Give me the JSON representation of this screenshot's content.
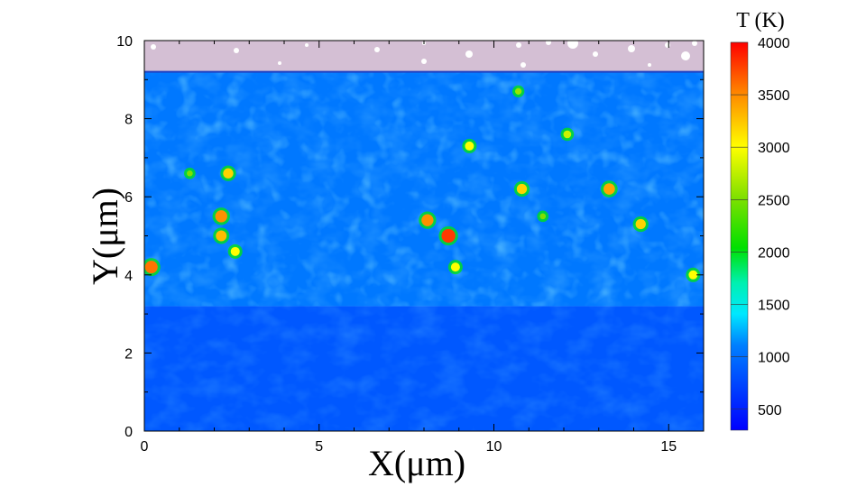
{
  "chart_data": {
    "type": "heatmap",
    "xlabel": "X(μm)",
    "ylabel": "Y(μm)",
    "xlim": [
      0,
      16
    ],
    "ylim": [
      0,
      10
    ],
    "xticks": [
      "0",
      "5",
      "10",
      "15"
    ],
    "yticks": [
      "0",
      "2",
      "4",
      "6",
      "8",
      "10"
    ],
    "grid": false,
    "colorbar": {
      "title": "T (K)",
      "range": [
        300,
        4000
      ],
      "ticks": [
        "500",
        "1000",
        "1500",
        "2000",
        "2500",
        "3000",
        "3500",
        "4000"
      ],
      "colormap": "jet",
      "placement": "right"
    },
    "regions": [
      {
        "y_range": [
          0,
          3.2
        ],
        "temperature": 850
      },
      {
        "y_range": [
          3.2,
          9.2
        ],
        "temperature": 1050
      },
      {
        "y_range": [
          9.2,
          10
        ],
        "temperature": null,
        "color": "#d4bfd4"
      }
    ],
    "hotspots": [
      {
        "x": 8.7,
        "y": 5.0,
        "T": 3800
      },
      {
        "x": 2.2,
        "y": 5.5,
        "T": 3500
      },
      {
        "x": 2.2,
        "y": 5.0,
        "T": 3300
      },
      {
        "x": 0.2,
        "y": 4.2,
        "T": 3600
      },
      {
        "x": 2.4,
        "y": 6.6,
        "T": 3200
      },
      {
        "x": 8.1,
        "y": 5.4,
        "T": 3500
      },
      {
        "x": 9.3,
        "y": 7.3,
        "T": 3000
      },
      {
        "x": 10.8,
        "y": 6.2,
        "T": 3200
      },
      {
        "x": 12.1,
        "y": 7.6,
        "T": 2800
      },
      {
        "x": 13.3,
        "y": 6.2,
        "T": 3400
      },
      {
        "x": 14.2,
        "y": 5.3,
        "T": 3200
      },
      {
        "x": 15.7,
        "y": 4.0,
        "T": 3000
      },
      {
        "x": 2.6,
        "y": 4.6,
        "T": 3000
      },
      {
        "x": 10.7,
        "y": 8.7,
        "T": 2600
      },
      {
        "x": 11.4,
        "y": 5.5,
        "T": 2500
      },
      {
        "x": 8.9,
        "y": 4.2,
        "T": 3000
      },
      {
        "x": 1.3,
        "y": 6.6,
        "T": 2500
      }
    ]
  }
}
